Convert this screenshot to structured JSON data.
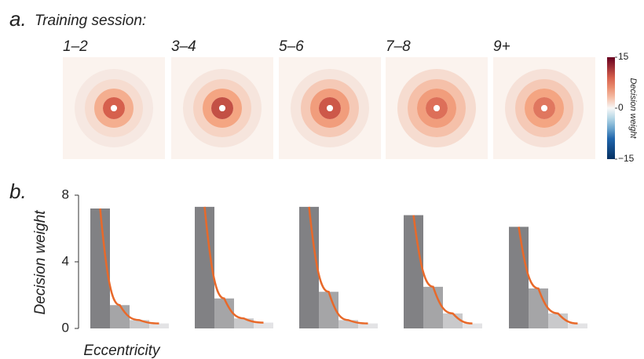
{
  "chart_data": [
    {
      "type": "heatmap",
      "panel_label": "a.",
      "title": "Training session:",
      "categories": [
        "1–2",
        "3–4",
        "5–6",
        "7–8",
        "9+"
      ],
      "values": [
        [
          9,
          4,
          1.5,
          0.8
        ],
        [
          10,
          4.5,
          2,
          1
        ],
        [
          9.5,
          5,
          2.5,
          1
        ],
        [
          8,
          5,
          3,
          1.5
        ],
        [
          7.5,
          4.5,
          2.5,
          1.2
        ]
      ],
      "colorbar_label": "Decision weight",
      "zlim": [
        -15,
        15
      ],
      "zticks": [
        15,
        0,
        {
          "value": -15,
          "label": "−15"
        }
      ]
    },
    {
      "type": "bar",
      "panel_label": "b.",
      "ylabel": "Decision weight",
      "xlabel": "Eccentricity",
      "groups": [
        [
          7.2,
          1.4,
          0.5,
          0.3
        ],
        [
          7.3,
          1.8,
          0.6,
          0.35
        ],
        [
          7.3,
          2.2,
          0.5,
          0.3
        ],
        [
          6.8,
          2.5,
          0.9,
          0.3
        ],
        [
          6.1,
          2.4,
          0.9,
          0.3
        ]
      ],
      "colors": [
        "#818184",
        "#a5a5a7",
        "#c9c9cb",
        "#e3e3e5"
      ],
      "curve_color": "#e8692a",
      "ylim": [
        0,
        8
      ],
      "yticks": [
        0,
        4,
        8
      ]
    }
  ]
}
